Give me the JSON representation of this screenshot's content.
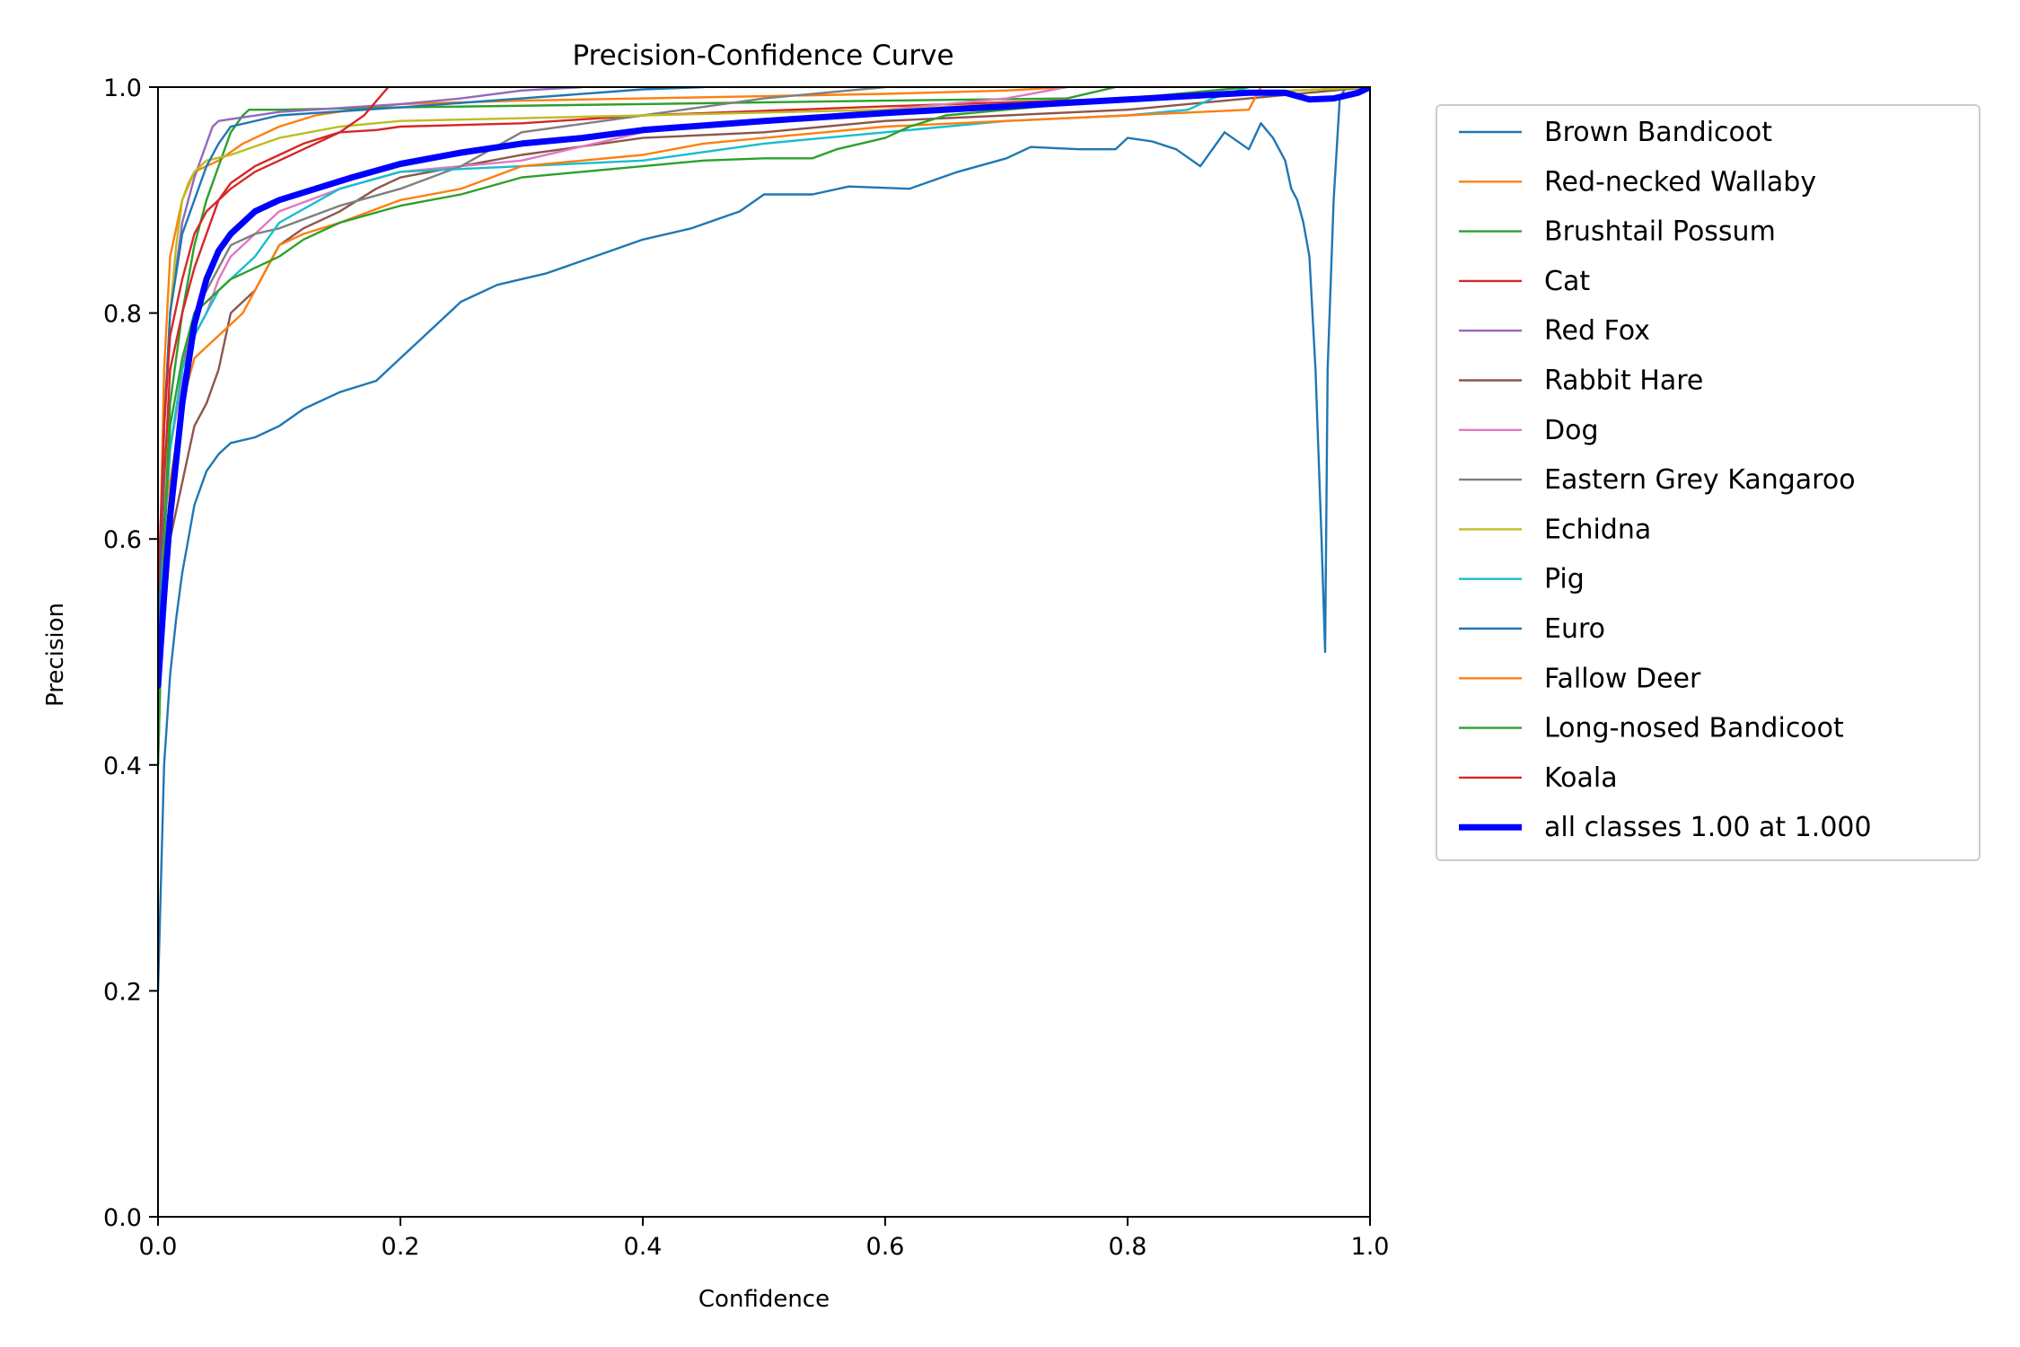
{
  "chart_data": {
    "type": "line",
    "title": "Precision-Confidence Curve",
    "xlabel": "Confidence",
    "ylabel": "Precision",
    "xlim": [
      0,
      1
    ],
    "ylim": [
      0,
      1
    ],
    "xticks": [
      "0.0",
      "0.2",
      "0.4",
      "0.6",
      "0.8",
      "1.0"
    ],
    "yticks": [
      "0.0",
      "0.2",
      "0.4",
      "0.6",
      "0.8",
      "1.0"
    ],
    "grid": false,
    "legend_position": "outside-right-top",
    "series": [
      {
        "name": "Brown Bandicoot",
        "color": "#1f77b4",
        "width": 2.4,
        "x": [
          0.0,
          0.005,
          0.01,
          0.015,
          0.02,
          0.025,
          0.03,
          0.04,
          0.05,
          0.06,
          0.08,
          0.1,
          0.12,
          0.15,
          0.18,
          0.2,
          0.22,
          0.25,
          0.28,
          0.32,
          0.36,
          0.4,
          0.44,
          0.48,
          0.5,
          0.54,
          0.57,
          0.62,
          0.66,
          0.7,
          0.72,
          0.76,
          0.79,
          0.8,
          0.82,
          0.84,
          0.86,
          0.87,
          0.88,
          0.9,
          0.91,
          0.92,
          0.93,
          0.935,
          0.94,
          0.945,
          0.95,
          0.955,
          0.96,
          0.963,
          0.965,
          0.97,
          0.975,
          0.98,
          1.0
        ],
        "y": [
          0.2,
          0.4,
          0.48,
          0.53,
          0.57,
          0.6,
          0.63,
          0.66,
          0.675,
          0.685,
          0.69,
          0.7,
          0.715,
          0.73,
          0.74,
          0.76,
          0.78,
          0.81,
          0.825,
          0.835,
          0.85,
          0.865,
          0.875,
          0.89,
          0.905,
          0.905,
          0.912,
          0.91,
          0.925,
          0.937,
          0.947,
          0.945,
          0.945,
          0.955,
          0.952,
          0.945,
          0.93,
          0.945,
          0.96,
          0.945,
          0.968,
          0.955,
          0.935,
          0.91,
          0.9,
          0.88,
          0.85,
          0.75,
          0.6,
          0.5,
          0.75,
          0.9,
          0.99,
          1.0,
          1.0
        ]
      },
      {
        "name": "Red-necked Wallaby",
        "color": "#ff7f0e",
        "width": 2.4,
        "x": [
          0.0,
          0.005,
          0.01,
          0.02,
          0.03,
          0.05,
          0.07,
          0.1,
          0.13,
          0.16,
          0.2,
          0.3,
          0.4,
          0.5,
          0.6,
          0.7,
          0.75
        ],
        "y": [
          0.5,
          0.75,
          0.85,
          0.9,
          0.925,
          0.935,
          0.95,
          0.965,
          0.975,
          0.98,
          0.985,
          0.988,
          0.99,
          0.992,
          0.994,
          0.997,
          1.0
        ]
      },
      {
        "name": "Brushtail Possum",
        "color": "#2ca02c",
        "width": 2.4,
        "x": [
          0.0,
          0.005,
          0.01,
          0.02,
          0.03,
          0.04,
          0.05,
          0.06,
          0.07,
          0.075,
          0.1,
          0.2,
          0.4,
          0.6,
          0.75,
          0.79
        ],
        "y": [
          0.4,
          0.6,
          0.72,
          0.8,
          0.86,
          0.9,
          0.93,
          0.96,
          0.975,
          0.98,
          0.98,
          0.982,
          0.985,
          0.988,
          0.99,
          1.0
        ]
      },
      {
        "name": "Cat",
        "color": "#d62728",
        "width": 2.4,
        "x": [
          0.0,
          0.005,
          0.01,
          0.02,
          0.03,
          0.04,
          0.05,
          0.06,
          0.08,
          0.1,
          0.12,
          0.15,
          0.18,
          0.2,
          0.3,
          0.4,
          0.6,
          0.8,
          1.0
        ],
        "y": [
          0.5,
          0.65,
          0.75,
          0.8,
          0.84,
          0.87,
          0.9,
          0.915,
          0.93,
          0.94,
          0.95,
          0.96,
          0.962,
          0.965,
          0.968,
          0.975,
          0.983,
          0.99,
          1.0
        ]
      },
      {
        "name": "Red Fox",
        "color": "#9467bd",
        "width": 2.4,
        "x": [
          0.0,
          0.005,
          0.01,
          0.02,
          0.03,
          0.04,
          0.045,
          0.05,
          0.1,
          0.2,
          0.25,
          0.3,
          0.35
        ],
        "y": [
          0.5,
          0.7,
          0.8,
          0.88,
          0.92,
          0.95,
          0.965,
          0.97,
          0.978,
          0.985,
          0.99,
          0.997,
          1.0
        ]
      },
      {
        "name": "Rabbit Hare",
        "color": "#8c564b",
        "width": 2.4,
        "x": [
          0.0,
          0.005,
          0.01,
          0.02,
          0.03,
          0.04,
          0.05,
          0.06,
          0.08,
          0.1,
          0.12,
          0.15,
          0.18,
          0.2,
          0.25,
          0.3,
          0.4,
          0.5,
          0.6,
          0.7,
          0.8,
          0.9,
          1.0
        ],
        "y": [
          0.45,
          0.55,
          0.6,
          0.65,
          0.7,
          0.72,
          0.75,
          0.8,
          0.82,
          0.86,
          0.875,
          0.89,
          0.91,
          0.92,
          0.93,
          0.94,
          0.955,
          0.96,
          0.97,
          0.975,
          0.98,
          0.99,
          1.0
        ]
      },
      {
        "name": "Dog",
        "color": "#e377c2",
        "width": 2.4,
        "x": [
          0.0,
          0.005,
          0.01,
          0.02,
          0.03,
          0.04,
          0.05,
          0.06,
          0.08,
          0.1,
          0.15,
          0.2,
          0.3,
          0.4,
          0.5,
          0.6,
          0.7,
          0.75
        ],
        "y": [
          0.5,
          0.6,
          0.68,
          0.74,
          0.78,
          0.8,
          0.83,
          0.85,
          0.87,
          0.89,
          0.91,
          0.925,
          0.935,
          0.96,
          0.97,
          0.98,
          0.99,
          1.0
        ]
      },
      {
        "name": "Eastern Grey Kangaroo",
        "color": "#7f7f7f",
        "width": 2.4,
        "x": [
          0.0,
          0.005,
          0.01,
          0.02,
          0.03,
          0.04,
          0.05,
          0.06,
          0.08,
          0.1,
          0.15,
          0.2,
          0.25,
          0.3,
          0.4,
          0.5,
          0.6
        ],
        "y": [
          0.5,
          0.6,
          0.68,
          0.75,
          0.8,
          0.82,
          0.84,
          0.86,
          0.87,
          0.875,
          0.895,
          0.91,
          0.93,
          0.96,
          0.975,
          0.99,
          1.0
        ]
      },
      {
        "name": "Echidna",
        "color": "#bcbd22",
        "width": 2.4,
        "x": [
          0.0,
          0.005,
          0.01,
          0.015,
          0.02,
          0.025,
          0.03,
          0.04,
          0.06,
          0.1,
          0.15,
          0.2,
          0.4,
          0.6,
          0.8,
          1.0
        ],
        "y": [
          0.5,
          0.7,
          0.8,
          0.86,
          0.9,
          0.915,
          0.925,
          0.935,
          0.94,
          0.955,
          0.965,
          0.97,
          0.975,
          0.98,
          0.99,
          1.0
        ]
      },
      {
        "name": "Pig",
        "color": "#17becf",
        "width": 2.4,
        "x": [
          0.0,
          0.005,
          0.01,
          0.02,
          0.03,
          0.04,
          0.05,
          0.06,
          0.08,
          0.1,
          0.15,
          0.2,
          0.3,
          0.4,
          0.5,
          0.6,
          0.7,
          0.8,
          0.85,
          0.87,
          0.9
        ],
        "y": [
          0.45,
          0.6,
          0.68,
          0.75,
          0.78,
          0.8,
          0.82,
          0.83,
          0.85,
          0.88,
          0.91,
          0.925,
          0.93,
          0.935,
          0.95,
          0.96,
          0.97,
          0.975,
          0.98,
          0.99,
          1.0
        ]
      },
      {
        "name": "Euro",
        "color": "#1f77b4",
        "width": 2.4,
        "x": [
          0.0,
          0.005,
          0.01,
          0.02,
          0.03,
          0.04,
          0.05,
          0.06,
          0.1,
          0.2,
          0.3,
          0.4,
          0.45
        ],
        "y": [
          0.5,
          0.7,
          0.8,
          0.87,
          0.9,
          0.93,
          0.95,
          0.965,
          0.975,
          0.982,
          0.99,
          0.998,
          1.0
        ]
      },
      {
        "name": "Fallow Deer",
        "color": "#ff7f0e",
        "width": 2.4,
        "x": [
          0.0,
          0.005,
          0.01,
          0.02,
          0.03,
          0.04,
          0.05,
          0.06,
          0.07,
          0.08,
          0.1,
          0.12,
          0.15,
          0.2,
          0.25,
          0.3,
          0.35,
          0.4,
          0.45,
          0.5,
          0.6,
          0.7,
          0.8,
          0.9,
          0.91
        ],
        "y": [
          0.45,
          0.55,
          0.65,
          0.72,
          0.76,
          0.77,
          0.78,
          0.79,
          0.8,
          0.82,
          0.86,
          0.87,
          0.88,
          0.9,
          0.91,
          0.93,
          0.935,
          0.94,
          0.95,
          0.955,
          0.965,
          0.97,
          0.975,
          0.98,
          1.0
        ]
      },
      {
        "name": "Long-nosed Bandicoot",
        "color": "#2ca02c",
        "width": 2.4,
        "x": [
          0.0,
          0.005,
          0.01,
          0.02,
          0.03,
          0.04,
          0.05,
          0.06,
          0.08,
          0.1,
          0.12,
          0.15,
          0.2,
          0.25,
          0.3,
          0.35,
          0.4,
          0.45,
          0.5,
          0.54,
          0.56,
          0.6,
          0.62,
          0.65,
          0.7,
          0.75,
          0.8,
          0.85,
          0.9
        ],
        "y": [
          0.4,
          0.6,
          0.7,
          0.76,
          0.8,
          0.81,
          0.82,
          0.83,
          0.84,
          0.85,
          0.865,
          0.88,
          0.895,
          0.905,
          0.92,
          0.925,
          0.93,
          0.935,
          0.937,
          0.937,
          0.945,
          0.955,
          0.965,
          0.975,
          0.98,
          0.985,
          0.99,
          0.995,
          1.0
        ]
      },
      {
        "name": "Koala",
        "color": "#d62728",
        "width": 2.4,
        "x": [
          0.0,
          0.005,
          0.01,
          0.02,
          0.03,
          0.04,
          0.06,
          0.08,
          0.1,
          0.12,
          0.15,
          0.17,
          0.19
        ],
        "y": [
          0.55,
          0.7,
          0.78,
          0.83,
          0.87,
          0.89,
          0.91,
          0.925,
          0.935,
          0.945,
          0.96,
          0.975,
          1.0
        ]
      },
      {
        "name": "all classes 1.00 at 1.000",
        "color": "#0000ff",
        "width": 7,
        "x": [
          0.0,
          0.005,
          0.01,
          0.015,
          0.02,
          0.03,
          0.04,
          0.05,
          0.06,
          0.08,
          0.1,
          0.13,
          0.16,
          0.2,
          0.25,
          0.3,
          0.35,
          0.4,
          0.5,
          0.6,
          0.7,
          0.8,
          0.9,
          0.93,
          0.95,
          0.97,
          0.99,
          1.0
        ],
        "y": [
          0.47,
          0.55,
          0.62,
          0.67,
          0.72,
          0.79,
          0.83,
          0.855,
          0.87,
          0.89,
          0.9,
          0.91,
          0.92,
          0.932,
          0.942,
          0.95,
          0.955,
          0.962,
          0.97,
          0.977,
          0.983,
          0.989,
          0.995,
          0.995,
          0.989,
          0.99,
          0.995,
          1.0
        ]
      }
    ]
  }
}
